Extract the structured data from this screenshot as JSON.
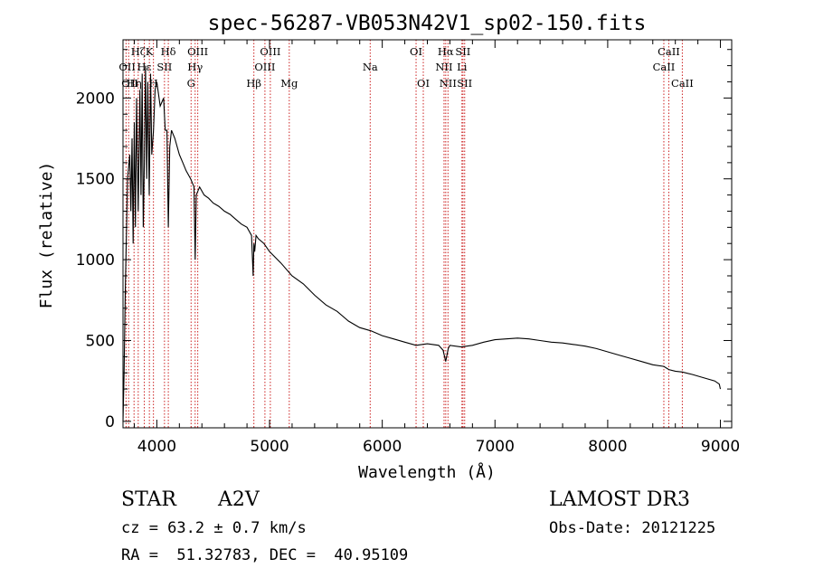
{
  "chart_data": {
    "type": "line",
    "title": "spec-56287-VB053N42V1_sp02-150.fits",
    "xlabel": "Wavelength (Å)",
    "ylabel": "Flux (relative)",
    "xlim": [
      3700,
      9100
    ],
    "ylim": [
      -40,
      2360
    ],
    "xticks": [
      4000,
      5000,
      6000,
      7000,
      8000,
      9000
    ],
    "yticks": [
      0,
      500,
      1000,
      1500,
      2000
    ],
    "grid": false,
    "series": [
      {
        "name": "spectrum",
        "x": [
          3700,
          3710,
          3720,
          3740,
          3760,
          3770,
          3780,
          3790,
          3800,
          3810,
          3820,
          3835,
          3850,
          3860,
          3870,
          3880,
          3889,
          3900,
          3910,
          3920,
          3933,
          3945,
          3955,
          3970,
          3985,
          4000,
          4030,
          4060,
          4075,
          4090,
          4102,
          4115,
          4130,
          4160,
          4200,
          4230,
          4260,
          4300,
          4330,
          4340,
          4350,
          4380,
          4420,
          4460,
          4500,
          4550,
          4600,
          4650,
          4700,
          4750,
          4800,
          4840,
          4855,
          4861,
          4868,
          4880,
          4900,
          4950,
          5000,
          5100,
          5200,
          5300,
          5400,
          5500,
          5600,
          5700,
          5800,
          5900,
          6000,
          6100,
          6200,
          6300,
          6400,
          6500,
          6540,
          6563,
          6585,
          6600,
          6700,
          6800,
          6900,
          7000,
          7100,
          7200,
          7300,
          7400,
          7500,
          7600,
          7700,
          7800,
          7900,
          8000,
          8100,
          8200,
          8300,
          8400,
          8498,
          8542,
          8600,
          8662,
          8750,
          8850,
          8950,
          8990,
          9000
        ],
        "y": [
          0,
          300,
          800,
          1500,
          1650,
          1300,
          1750,
          1100,
          1850,
          1200,
          2000,
          1300,
          2050,
          1400,
          2150,
          1200,
          1600,
          2200,
          1500,
          2100,
          1400,
          2150,
          1650,
          1800,
          2050,
          2100,
          1950,
          2000,
          1800,
          1800,
          1200,
          1700,
          1800,
          1750,
          1650,
          1600,
          1550,
          1500,
          1450,
          1000,
          1400,
          1450,
          1400,
          1380,
          1350,
          1330,
          1300,
          1280,
          1250,
          1220,
          1200,
          1150,
          900,
          1100,
          1050,
          1150,
          1130,
          1100,
          1050,
          980,
          900,
          850,
          780,
          720,
          680,
          620,
          580,
          560,
          530,
          510,
          490,
          470,
          480,
          470,
          440,
          370,
          450,
          470,
          460,
          470,
          490,
          505,
          510,
          515,
          510,
          500,
          490,
          485,
          475,
          465,
          450,
          430,
          410,
          390,
          370,
          350,
          340,
          320,
          310,
          305,
          290,
          270,
          250,
          230,
          200
        ]
      }
    ],
    "line_markers": [
      {
        "wl": 3727,
        "label": "OII",
        "row": 2,
        "side": "left"
      },
      {
        "wl": 3750,
        "label": "OII",
        "row": 3,
        "side": "left"
      },
      {
        "wl": 3798,
        "label": "Hη",
        "row": 3,
        "side": "center"
      },
      {
        "wl": 3835,
        "label": "Hζ",
        "row": 1,
        "side": "center"
      },
      {
        "wl": 3889,
        "label": "Hε",
        "row": 2,
        "side": "center"
      },
      {
        "wl": 3934,
        "label": "K",
        "row": 1,
        "side": "center"
      },
      {
        "wl": 3970,
        "label": "H",
        "row": 3,
        "side": "center"
      },
      {
        "wl": 4068,
        "label": "SII",
        "row": 2,
        "side": "center"
      },
      {
        "wl": 4102,
        "label": "Hδ",
        "row": 1,
        "side": "center"
      },
      {
        "wl": 4304,
        "label": "G",
        "row": 3,
        "side": "center"
      },
      {
        "wl": 4340,
        "label": "Hγ",
        "row": 2,
        "side": "center"
      },
      {
        "wl": 4363,
        "label": "OIII",
        "row": 1,
        "side": "center"
      },
      {
        "wl": 4861,
        "label": "Hβ",
        "row": 3,
        "side": "center"
      },
      {
        "wl": 4959,
        "label": "OIII",
        "row": 2,
        "side": "center"
      },
      {
        "wl": 5007,
        "label": "OIII",
        "row": 1,
        "side": "center"
      },
      {
        "wl": 5175,
        "label": "Mg",
        "row": 3,
        "side": "center"
      },
      {
        "wl": 5893,
        "label": "Na",
        "row": 2,
        "side": "center"
      },
      {
        "wl": 6300,
        "label": "OI",
        "row": 1,
        "side": "center"
      },
      {
        "wl": 6364,
        "label": "OI",
        "row": 3,
        "side": "center"
      },
      {
        "wl": 6548,
        "label": "NII",
        "row": 2,
        "side": "center"
      },
      {
        "wl": 6563,
        "label": "Hα",
        "row": 1,
        "side": "center"
      },
      {
        "wl": 6583,
        "label": "NII",
        "row": 3,
        "side": "center"
      },
      {
        "wl": 6707,
        "label": "Li",
        "row": 2,
        "side": "center"
      },
      {
        "wl": 6716,
        "label": "SII",
        "row": 1,
        "side": "center"
      },
      {
        "wl": 6731,
        "label": "SII",
        "row": 3,
        "side": "center"
      },
      {
        "wl": 8498,
        "label": "CaII",
        "row": 2,
        "side": "center"
      },
      {
        "wl": 8542,
        "label": "CaII",
        "row": 1,
        "side": "center"
      },
      {
        "wl": 8662,
        "label": "CaII",
        "row": 3,
        "side": "center"
      }
    ]
  },
  "info": {
    "object_class": "STAR",
    "subclass": "A2V",
    "survey": "LAMOST DR3",
    "cz": "cz = 63.2 ± 0.7 km/s",
    "obs_date": "Obs-Date: 20121225",
    "coords": "RA =  51.32783, DEC =  40.95109"
  }
}
